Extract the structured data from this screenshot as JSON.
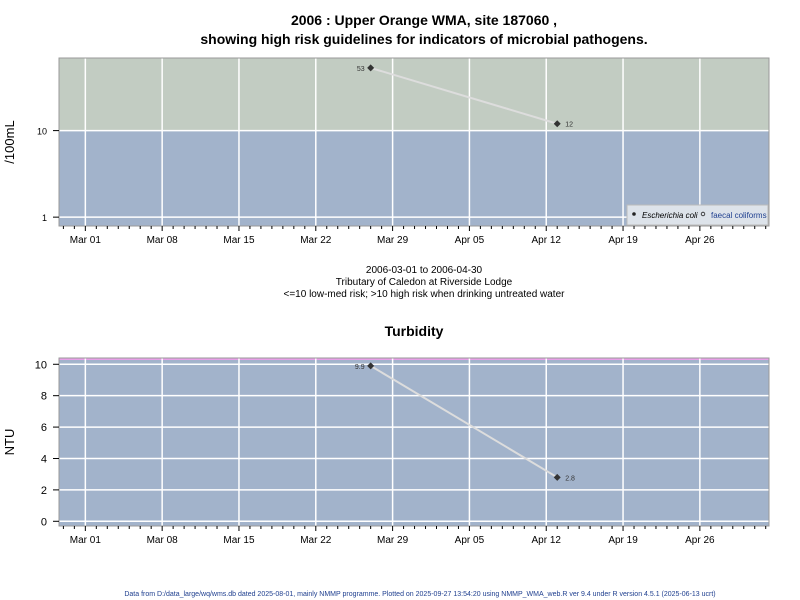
{
  "chart_data": [
    {
      "type": "line",
      "title": "2006 : Upper Orange WMA, site 187060 ,",
      "subtitle": "showing high risk guidelines for indicators of microbial pathogens.",
      "ylabel": "/100mL",
      "yscale": "log",
      "ylim": [
        0.79,
        69
      ],
      "yticks": [
        {
          "v": 1,
          "label": "1"
        },
        {
          "v": 10,
          "label": "10"
        }
      ],
      "xlim_days_from_mar01": [
        -2.4,
        62.3
      ],
      "xticks": [
        {
          "d": 0,
          "label": "Mar 01"
        },
        {
          "d": 7,
          "label": "Mar 08"
        },
        {
          "d": 14,
          "label": "Mar 15"
        },
        {
          "d": 21,
          "label": "Mar 22"
        },
        {
          "d": 28,
          "label": "Mar 29"
        },
        {
          "d": 35,
          "label": "Apr 05"
        },
        {
          "d": 42,
          "label": "Apr 12"
        },
        {
          "d": 49,
          "label": "Apr 19"
        },
        {
          "d": 56,
          "label": "Apr 26"
        }
      ],
      "bands": [
        {
          "from": 10,
          "to": 69,
          "color": "#c2ccc2",
          "meaning": "high risk"
        },
        {
          "from": 0.79,
          "to": 10,
          "color": "#a2b3cb",
          "meaning": "low-med risk"
        }
      ],
      "series": [
        {
          "name": "Escherichia coli",
          "marker": "filled",
          "points": [
            {
              "d": 26,
              "date": "2006-03-27",
              "y": 53,
              "label": "53"
            },
            {
              "d": 43,
              "date": "2006-04-13",
              "y": 12,
              "label": "12"
            }
          ]
        },
        {
          "name": "faecal coliforms",
          "marker": "open",
          "points": []
        }
      ],
      "legend_position": "bottom-right",
      "xlabel_lines": [
        "2006-03-01 to 2006-04-30",
        "Tributary of Caledon at Riverside Lodge",
        "<=10 low-med risk; >10 high risk when drinking untreated water"
      ]
    },
    {
      "type": "line",
      "title": "Turbidity",
      "ylabel": "NTU",
      "ylim": [
        -0.3,
        10.4
      ],
      "yticks": [
        {
          "v": 0,
          "label": "0"
        },
        {
          "v": 2,
          "label": "2"
        },
        {
          "v": 4,
          "label": "4"
        },
        {
          "v": 6,
          "label": "6"
        },
        {
          "v": 8,
          "label": "8"
        },
        {
          "v": 10,
          "label": "10"
        }
      ],
      "xlim_days_from_mar01": [
        -2.4,
        62.3
      ],
      "xticks": [
        {
          "d": 0,
          "label": "Mar 01"
        },
        {
          "d": 7,
          "label": "Mar 08"
        },
        {
          "d": 14,
          "label": "Mar 15"
        },
        {
          "d": 21,
          "label": "Mar 22"
        },
        {
          "d": 28,
          "label": "Mar 29"
        },
        {
          "d": 35,
          "label": "Apr 05"
        },
        {
          "d": 42,
          "label": "Apr 12"
        },
        {
          "d": 49,
          "label": "Apr 19"
        },
        {
          "d": 56,
          "label": "Apr 26"
        }
      ],
      "series": [
        {
          "name": "Turbidity",
          "points": [
            {
              "d": 26,
              "date": "2006-03-27",
              "y": 9.9,
              "label": "9.9"
            },
            {
              "d": 43,
              "date": "2006-04-13",
              "y": 2.8,
              "label": "2.8"
            }
          ]
        }
      ]
    }
  ],
  "footer": "Data from D:/data_large/wq/wms.db dated 2025-08-01, mainly NMMP programme. Plotted on 2025-09-27 13:54:20 using NMMP_WMA_web.R ver 9.4 under R version 4.5.1 (2025-06-13 ucrt)",
  "colors": {
    "high": "#c2ccc2",
    "low": "#a2b3cb",
    "line": "#dddddd",
    "point": "#333333",
    "footer": "#1f3f8f",
    "guide": "#e8a0e8"
  }
}
